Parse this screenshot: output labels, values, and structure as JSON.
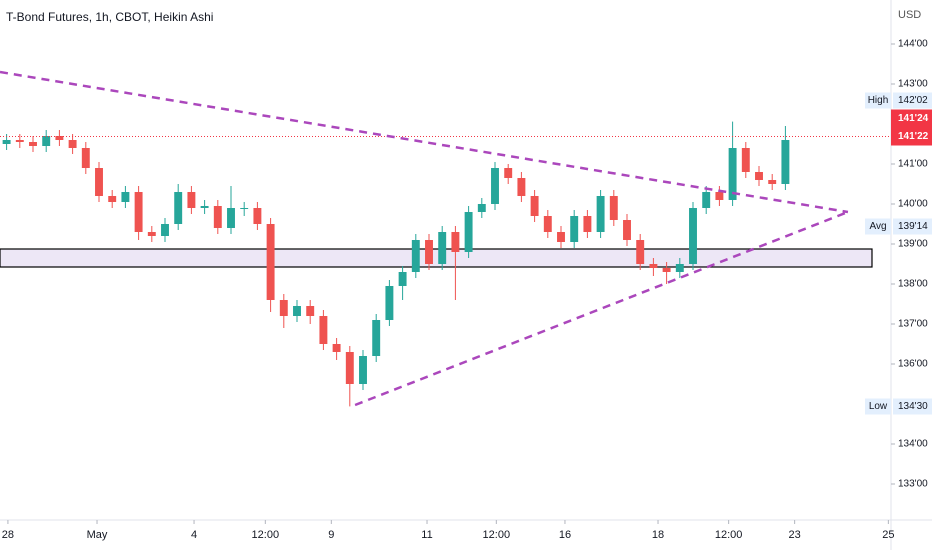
{
  "chart_data": {
    "type": "candlestick",
    "title": "T-Bond Futures, 1h, CBOT, Heikin Ashi",
    "unit": "USD",
    "up_color": "#26a69a",
    "down_color": "#ef5350",
    "grid": false,
    "xlim": [
      0,
      67.5
    ],
    "ylim": [
      132.1,
      145.1
    ],
    "xticks": [
      {
        "value": 0.6,
        "label": "28"
      },
      {
        "value": 7.35,
        "label": "May"
      },
      {
        "value": 14.7,
        "label": "4"
      },
      {
        "value": 20.1,
        "label": "12:00"
      },
      {
        "value": 25.1,
        "label": "9"
      },
      {
        "value": 32.35,
        "label": "11"
      },
      {
        "value": 37.6,
        "label": "12:00"
      },
      {
        "value": 42.8,
        "label": "16"
      },
      {
        "value": 49.85,
        "label": "18"
      },
      {
        "value": 55.2,
        "label": "12:00"
      },
      {
        "value": 60.2,
        "label": "23"
      },
      {
        "value": 67.3,
        "label": "25"
      }
    ],
    "yticks": [
      {
        "value": 144,
        "label": "144'00"
      },
      {
        "value": 143,
        "label": "143'00"
      },
      {
        "value": 141,
        "label": "141'00"
      },
      {
        "value": 140,
        "label": "140'00"
      },
      {
        "value": 139,
        "label": "139'00"
      },
      {
        "value": 138,
        "label": "138'00"
      },
      {
        "value": 137,
        "label": "137'00"
      },
      {
        "value": 136,
        "label": "136'00"
      },
      {
        "value": 134,
        "label": "134'00"
      },
      {
        "value": 133,
        "label": "133'00"
      }
    ],
    "x": [
      0.5,
      1.5,
      2.5,
      3.5,
      4.5,
      5.5,
      6.5,
      7.5,
      8.5,
      9.5,
      10.5,
      11.5,
      12.5,
      13.5,
      14.5,
      15.5,
      16.5,
      17.5,
      18.5,
      19.5,
      20.5,
      21.5,
      22.5,
      23.5,
      24.5,
      25.5,
      26.5,
      27.5,
      28.5,
      29.5,
      30.5,
      31.5,
      32.5,
      33.5,
      34.5,
      35.5,
      36.5,
      37.5,
      38.5,
      39.5,
      40.5,
      41.5,
      42.5,
      43.5,
      44.5,
      45.5,
      46.5,
      47.5,
      48.5,
      49.5,
      50.5,
      51.5,
      52.5,
      53.5,
      54.5,
      55.5,
      56.5,
      57.5,
      58.5,
      59.5
    ],
    "open": [
      141.5,
      141.6,
      141.55,
      141.45,
      141.7,
      141.6,
      141.4,
      140.9,
      140.2,
      140.05,
      140.3,
      139.3,
      139.2,
      139.5,
      140.3,
      139.9,
      139.95,
      139.4,
      139.9,
      139.9,
      139.5,
      137.6,
      137.2,
      137.45,
      137.2,
      136.5,
      136.3,
      135.5,
      136.2,
      137.1,
      137.95,
      138.3,
      139.1,
      138.5,
      139.3,
      138.8,
      139.8,
      140.0,
      140.9,
      140.65,
      140.2,
      139.7,
      139.3,
      139.05,
      139.7,
      139.3,
      140.2,
      139.6,
      139.1,
      138.5,
      138.4,
      138.3,
      138.5,
      139.9,
      140.3,
      140.1,
      141.4,
      140.8,
      140.6,
      140.5
    ],
    "high": [
      141.75,
      141.75,
      141.7,
      141.85,
      141.85,
      141.75,
      141.55,
      141.05,
      140.35,
      140.45,
      140.45,
      139.45,
      139.65,
      140.5,
      140.45,
      140.1,
      140.1,
      140.45,
      140.05,
      140.05,
      139.65,
      137.75,
      137.6,
      137.6,
      137.35,
      136.65,
      136.45,
      136.35,
      137.25,
      138.1,
      138.45,
      139.25,
      139.25,
      139.45,
      139.45,
      139.95,
      140.15,
      141.05,
      141.0,
      140.8,
      140.35,
      139.85,
      139.45,
      139.85,
      139.85,
      140.35,
      140.35,
      139.75,
      139.25,
      138.65,
      138.55,
      138.65,
      140.05,
      140.45,
      140.45,
      142.06,
      141.55,
      140.95,
      140.75,
      141.95
    ],
    "low": [
      141.35,
      141.4,
      141.3,
      141.3,
      141.45,
      141.25,
      140.75,
      140.05,
      139.9,
      139.9,
      139.1,
      139.05,
      139.05,
      139.35,
      139.75,
      139.75,
      139.25,
      139.25,
      139.7,
      139.35,
      137.3,
      136.9,
      137.05,
      137.0,
      136.35,
      136.1,
      134.94,
      135.35,
      136.05,
      136.95,
      137.6,
      138.15,
      138.35,
      138.35,
      137.6,
      138.65,
      139.65,
      139.85,
      140.5,
      140.05,
      139.55,
      139.15,
      138.9,
      138.9,
      139.15,
      139.15,
      139.45,
      138.95,
      138.35,
      138.2,
      138.0,
      138.15,
      138.35,
      139.75,
      139.95,
      139.95,
      140.65,
      140.45,
      140.35,
      140.35
    ],
    "close": [
      141.6,
      141.55,
      141.45,
      141.7,
      141.6,
      141.4,
      140.9,
      140.2,
      140.05,
      140.3,
      139.3,
      139.2,
      139.5,
      140.3,
      139.9,
      139.95,
      139.4,
      139.9,
      139.9,
      139.5,
      137.6,
      137.2,
      137.45,
      137.2,
      136.5,
      136.3,
      135.5,
      136.2,
      137.1,
      137.95,
      138.3,
      139.1,
      138.5,
      139.3,
      138.8,
      139.8,
      140.0,
      140.9,
      140.65,
      140.2,
      139.7,
      139.3,
      139.05,
      139.7,
      139.3,
      140.2,
      139.6,
      139.1,
      138.5,
      138.4,
      138.3,
      138.5,
      139.9,
      140.3,
      140.1,
      141.4,
      140.8,
      140.6,
      140.5,
      141.6
    ],
    "trendlines": [
      {
        "color": "#ab47bc",
        "x": [
          0,
          64.24
        ],
        "y": [
          143.3,
          139.8
        ]
      },
      {
        "color": "#ab47bc",
        "x": [
          26.9,
          64.24
        ],
        "y": [
          134.975,
          139.8
        ]
      }
    ],
    "zone": {
      "x": [
        0,
        66.06
      ],
      "y": [
        138.425,
        138.875
      ],
      "color": "#ede7f6"
    },
    "price_line": {
      "value": 141.6875,
      "color": "#f23645"
    },
    "stats": [
      {
        "name": "High",
        "value": 142.0625,
        "label": "142'02"
      },
      {
        "name": "Avg",
        "value": 139.4375,
        "label": "139'14"
      },
      {
        "name": "Low",
        "value": 134.9375,
        "label": "134'30"
      }
    ],
    "price_tags": [
      {
        "label": "141'24",
        "value": 141.75,
        "color": "#f23645"
      },
      {
        "label": "141'22",
        "value": 141.6875,
        "color": "#f23645"
      }
    ]
  }
}
